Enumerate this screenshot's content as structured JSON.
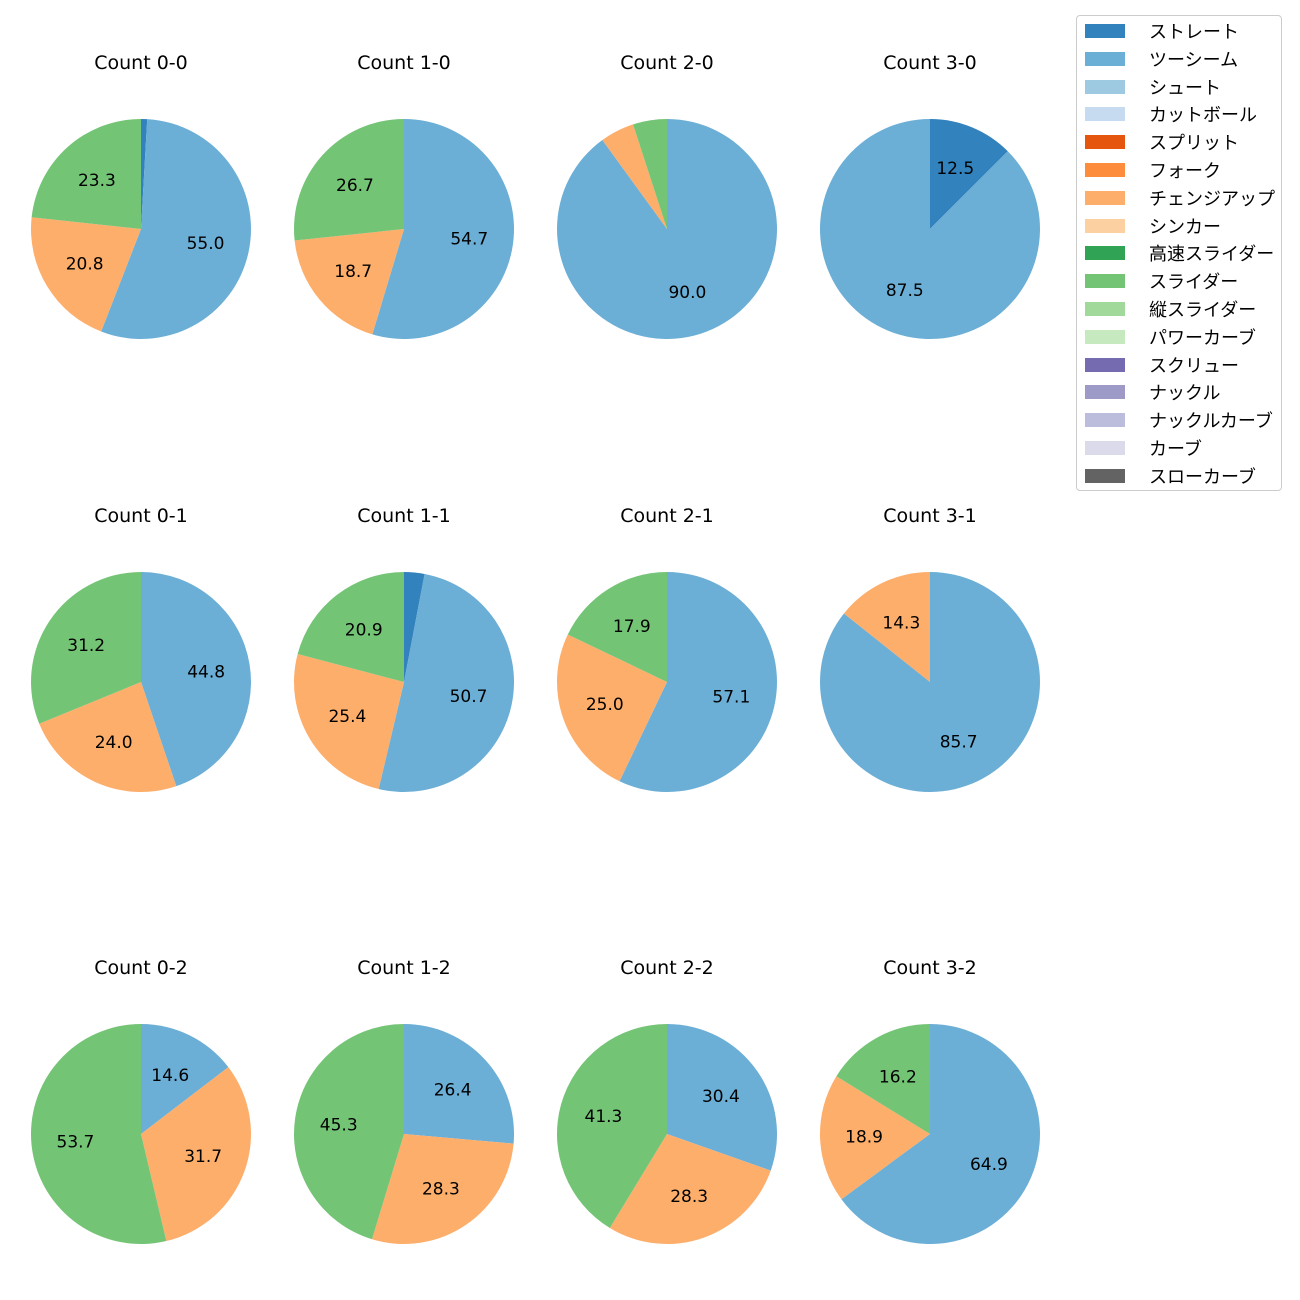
{
  "chart_data": {
    "type": "pie",
    "legend_placement": "top-right",
    "legend": [
      {
        "label": "ストレート",
        "color": "#3182bd"
      },
      {
        "label": "ツーシーム",
        "color": "#6baed6"
      },
      {
        "label": "シュート",
        "color": "#9ecae1"
      },
      {
        "label": "カットボール",
        "color": "#c6dbef"
      },
      {
        "label": "スプリット",
        "color": "#e6550d"
      },
      {
        "label": "フォーク",
        "color": "#fd8d3c"
      },
      {
        "label": "チェンジアップ",
        "color": "#fdae6b"
      },
      {
        "label": "シンカー",
        "color": "#fdd0a2"
      },
      {
        "label": "高速スライダー",
        "color": "#31a354"
      },
      {
        "label": "スライダー",
        "color": "#74c476"
      },
      {
        "label": "縦スライダー",
        "color": "#a1d99b"
      },
      {
        "label": "パワーカーブ",
        "color": "#c7e9c0"
      },
      {
        "label": "スクリュー",
        "color": "#756bb1"
      },
      {
        "label": "ナックル",
        "color": "#9e9ac8"
      },
      {
        "label": "ナックルカーブ",
        "color": "#bcbddc"
      },
      {
        "label": "カーブ",
        "color": "#dadaeb"
      },
      {
        "label": "スローカーブ",
        "color": "#636363"
      }
    ],
    "charts": [
      {
        "title": "Count 0-0",
        "slices": [
          {
            "pitch": "ストレート",
            "value": 0.9,
            "label": ""
          },
          {
            "pitch": "ツーシーム",
            "value": 55.0,
            "label": "55.0"
          },
          {
            "pitch": "チェンジアップ",
            "value": 20.8,
            "label": "20.8"
          },
          {
            "pitch": "スライダー",
            "value": 23.3,
            "label": "23.3"
          }
        ]
      },
      {
        "title": "Count 1-0",
        "slices": [
          {
            "pitch": "ツーシーム",
            "value": 54.7,
            "label": "54.7"
          },
          {
            "pitch": "チェンジアップ",
            "value": 18.7,
            "label": "18.7"
          },
          {
            "pitch": "スライダー",
            "value": 26.7,
            "label": "26.7"
          }
        ]
      },
      {
        "title": "Count 2-0",
        "slices": [
          {
            "pitch": "ツーシーム",
            "value": 90.0,
            "label": "90.0"
          },
          {
            "pitch": "チェンジアップ",
            "value": 5.0,
            "label": ""
          },
          {
            "pitch": "スライダー",
            "value": 5.0,
            "label": ""
          }
        ]
      },
      {
        "title": "Count 3-0",
        "slices": [
          {
            "pitch": "ストレート",
            "value": 12.5,
            "label": "12.5"
          },
          {
            "pitch": "ツーシーム",
            "value": 87.5,
            "label": "87.5"
          }
        ]
      },
      {
        "title": "Count 0-1",
        "slices": [
          {
            "pitch": "ツーシーム",
            "value": 44.8,
            "label": "44.8"
          },
          {
            "pitch": "チェンジアップ",
            "value": 24.0,
            "label": "24.0"
          },
          {
            "pitch": "スライダー",
            "value": 31.2,
            "label": "31.2"
          }
        ]
      },
      {
        "title": "Count 1-1",
        "slices": [
          {
            "pitch": "ストレート",
            "value": 3.0,
            "label": ""
          },
          {
            "pitch": "ツーシーム",
            "value": 50.7,
            "label": "50.7"
          },
          {
            "pitch": "チェンジアップ",
            "value": 25.4,
            "label": "25.4"
          },
          {
            "pitch": "スライダー",
            "value": 20.9,
            "label": "20.9"
          }
        ]
      },
      {
        "title": "Count 2-1",
        "slices": [
          {
            "pitch": "ツーシーム",
            "value": 57.1,
            "label": "57.1"
          },
          {
            "pitch": "チェンジアップ",
            "value": 25.0,
            "label": "25.0"
          },
          {
            "pitch": "スライダー",
            "value": 17.9,
            "label": "17.9"
          }
        ]
      },
      {
        "title": "Count 3-1",
        "slices": [
          {
            "pitch": "ツーシーム",
            "value": 85.7,
            "label": "85.7"
          },
          {
            "pitch": "チェンジアップ",
            "value": 14.3,
            "label": "14.3"
          }
        ]
      },
      {
        "title": "Count 0-2",
        "slices": [
          {
            "pitch": "ツーシーム",
            "value": 14.6,
            "label": "14.6"
          },
          {
            "pitch": "チェンジアップ",
            "value": 31.7,
            "label": "31.7"
          },
          {
            "pitch": "スライダー",
            "value": 53.7,
            "label": "53.7"
          }
        ]
      },
      {
        "title": "Count 1-2",
        "slices": [
          {
            "pitch": "ツーシーム",
            "value": 26.4,
            "label": "26.4"
          },
          {
            "pitch": "チェンジアップ",
            "value": 28.3,
            "label": "28.3"
          },
          {
            "pitch": "スライダー",
            "value": 45.3,
            "label": "45.3"
          }
        ]
      },
      {
        "title": "Count 2-2",
        "slices": [
          {
            "pitch": "ツーシーム",
            "value": 30.4,
            "label": "30.4"
          },
          {
            "pitch": "チェンジアップ",
            "value": 28.3,
            "label": "28.3"
          },
          {
            "pitch": "スライダー",
            "value": 41.3,
            "label": "41.3"
          }
        ]
      },
      {
        "title": "Count 3-2",
        "slices": [
          {
            "pitch": "ツーシーム",
            "value": 64.9,
            "label": "64.9"
          },
          {
            "pitch": "チェンジアップ",
            "value": 18.9,
            "label": "18.9"
          },
          {
            "pitch": "スライダー",
            "value": 16.2,
            "label": "16.2"
          }
        ]
      }
    ]
  }
}
